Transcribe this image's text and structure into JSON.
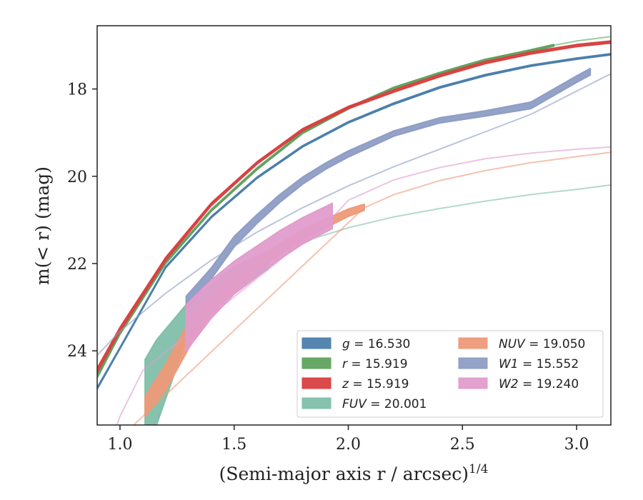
{
  "chart_data": {
    "type": "line",
    "xlabel": "(Semi-major axis r / arcsec)",
    "xlabel_sup": "1/4",
    "ylabel": "m(< r) (mag)",
    "xlim": [
      0.9,
      3.15
    ],
    "ylim": [
      25.7,
      16.55
    ],
    "y_inverted": true,
    "xticks": [
      1.0,
      1.5,
      2.0,
      2.5,
      3.0
    ],
    "xtick_labels": [
      "1.0",
      "1.5",
      "2.0",
      "2.5",
      "3.0"
    ],
    "yticks": [
      18,
      20,
      22,
      24
    ],
    "ytick_labels": [
      "18",
      "20",
      "22",
      "24"
    ],
    "grid": false,
    "legend_placement": "lower-right",
    "legend_columns": 2,
    "series": [
      {
        "name": "g = 16.530",
        "color": "#4c7fac",
        "legend_italic": "g",
        "legend_value": "= 16.530",
        "band": [
          [
            0.9,
            24.88,
            24.84
          ],
          [
            1.0,
            23.95,
            23.92
          ],
          [
            1.2,
            22.1,
            22.07
          ],
          [
            1.4,
            20.95,
            20.92
          ],
          [
            1.6,
            20.05,
            20.02
          ],
          [
            1.8,
            19.33,
            19.3
          ],
          [
            2.0,
            18.78,
            18.75
          ],
          [
            2.2,
            18.35,
            18.32
          ],
          [
            2.4,
            17.98,
            17.95
          ],
          [
            2.6,
            17.7,
            17.67
          ],
          [
            2.8,
            17.48,
            17.45
          ],
          [
            3.0,
            17.32,
            17.29
          ],
          [
            3.15,
            17.22,
            17.19
          ]
        ],
        "model": []
      },
      {
        "name": "r = 15.919",
        "color": "#5fa35f",
        "legend_italic": "r",
        "legend_value": "= 15.919",
        "band": [
          [
            0.9,
            24.62,
            24.55
          ],
          [
            1.0,
            23.62,
            23.56
          ],
          [
            1.2,
            22.0,
            21.96
          ],
          [
            1.4,
            20.8,
            20.76
          ],
          [
            1.6,
            19.85,
            19.81
          ],
          [
            1.8,
            19.02,
            18.98
          ],
          [
            2.0,
            18.46,
            18.42
          ],
          [
            2.2,
            18.0,
            17.96
          ],
          [
            2.4,
            17.66,
            17.62
          ],
          [
            2.6,
            17.36,
            17.32
          ],
          [
            2.8,
            17.14,
            17.1
          ],
          [
            2.9,
            17.02,
            16.98
          ]
        ],
        "model": [
          [
            2.9,
            17.0
          ],
          [
            3.0,
            16.9
          ],
          [
            3.15,
            16.8
          ]
        ]
      },
      {
        "name": "z = 15.919",
        "color": "#d94040",
        "legend_italic": "z",
        "legend_value": "= 15.919",
        "band": [
          [
            0.9,
            24.5,
            24.4
          ],
          [
            1.0,
            23.55,
            23.46
          ],
          [
            1.2,
            21.93,
            21.86
          ],
          [
            1.4,
            20.67,
            20.61
          ],
          [
            1.6,
            19.72,
            19.67
          ],
          [
            1.8,
            18.96,
            18.91
          ],
          [
            2.0,
            18.45,
            18.4
          ],
          [
            2.2,
            18.07,
            18.02
          ],
          [
            2.4,
            17.72,
            17.67
          ],
          [
            2.6,
            17.42,
            17.37
          ],
          [
            2.8,
            17.2,
            17.15
          ],
          [
            3.0,
            17.03,
            16.98
          ],
          [
            3.15,
            16.95,
            16.9
          ]
        ],
        "model": []
      },
      {
        "name": "FUV = 20.001",
        "color": "#80bfaa",
        "legend_italic": "FUV",
        "legend_value": "= 20.001",
        "band": [
          [
            1.11,
            25.7,
            24.2
          ],
          [
            1.16,
            25.7,
            23.75
          ],
          [
            1.3,
            23.6,
            22.88
          ],
          [
            1.5,
            22.62,
            22.08
          ],
          [
            1.65,
            22.12,
            21.72
          ]
        ],
        "model": [
          [
            1.65,
            21.8
          ],
          [
            1.8,
            21.5
          ],
          [
            2.0,
            21.18
          ],
          [
            2.2,
            20.93
          ],
          [
            2.4,
            20.74
          ],
          [
            2.6,
            20.57
          ],
          [
            2.8,
            20.42
          ],
          [
            3.0,
            20.3
          ],
          [
            3.15,
            20.2
          ]
        ]
      },
      {
        "name": "NUV = 19.050",
        "color": "#ee9a78",
        "legend_italic": "NUV",
        "legend_value": "= 19.050",
        "band": [
          [
            1.11,
            25.5,
            25.05
          ],
          [
            1.2,
            24.9,
            24.3
          ],
          [
            1.3,
            23.95,
            23.35
          ],
          [
            1.4,
            23.15,
            22.72
          ],
          [
            1.5,
            22.62,
            22.28
          ],
          [
            1.6,
            22.15,
            21.88
          ],
          [
            1.8,
            21.45,
            21.22
          ],
          [
            2.0,
            20.92,
            20.75
          ],
          [
            2.07,
            20.78,
            20.64
          ]
        ],
        "model": [
          [
            0.9,
            26.5
          ],
          [
            1.0,
            26.2
          ],
          [
            1.05,
            25.75
          ],
          [
            2.07,
            20.72
          ],
          [
            2.2,
            20.42
          ],
          [
            2.4,
            20.1
          ],
          [
            2.6,
            19.87
          ],
          [
            2.8,
            19.69
          ],
          [
            3.0,
            19.55
          ],
          [
            3.15,
            19.45
          ]
        ]
      },
      {
        "name": "W1 = 15.552",
        "color": "#8e9dc5",
        "legend_italic": "W1",
        "legend_value": "= 15.552",
        "band": [
          [
            1.29,
            23.05,
            22.75
          ],
          [
            1.4,
            22.35,
            22.1
          ],
          [
            1.5,
            21.62,
            21.38
          ],
          [
            1.6,
            21.08,
            20.88
          ],
          [
            1.7,
            20.6,
            20.42
          ],
          [
            1.8,
            20.18,
            20.02
          ],
          [
            1.9,
            19.84,
            19.7
          ],
          [
            2.0,
            19.56,
            19.42
          ],
          [
            2.2,
            19.08,
            18.96
          ],
          [
            2.4,
            18.78,
            18.66
          ],
          [
            2.6,
            18.62,
            18.5
          ],
          [
            2.8,
            18.45,
            18.3
          ],
          [
            2.9,
            18.15,
            18.0
          ],
          [
            3.0,
            17.85,
            17.7
          ],
          [
            3.06,
            17.68,
            17.53
          ]
        ],
        "model": [
          [
            0.9,
            24.1
          ],
          [
            1.0,
            23.55
          ],
          [
            1.2,
            22.68
          ],
          [
            1.4,
            21.92
          ],
          [
            1.6,
            21.28
          ],
          [
            1.8,
            20.72
          ],
          [
            2.0,
            20.22
          ],
          [
            2.2,
            19.78
          ],
          [
            2.4,
            19.38
          ],
          [
            2.6,
            18.98
          ],
          [
            2.8,
            18.58
          ],
          [
            3.0,
            18.05
          ],
          [
            3.15,
            17.65
          ]
        ]
      },
      {
        "name": "W2 = 19.240",
        "color": "#e09ccb",
        "legend_italic": "W2",
        "legend_value": "= 19.240",
        "band": [
          [
            1.29,
            24.0,
            22.95
          ],
          [
            1.4,
            23.25,
            22.38
          ],
          [
            1.5,
            22.7,
            21.95
          ],
          [
            1.6,
            22.3,
            21.6
          ],
          [
            1.7,
            21.9,
            21.25
          ],
          [
            1.8,
            21.55,
            20.95
          ],
          [
            1.93,
            21.2,
            20.62
          ]
        ],
        "model": [
          [
            0.9,
            27.0
          ],
          [
            1.0,
            25.5
          ],
          [
            1.1,
            24.45
          ],
          [
            1.93,
            20.95
          ],
          [
            2.0,
            20.55
          ],
          [
            2.2,
            20.08
          ],
          [
            2.4,
            19.8
          ],
          [
            2.6,
            19.6
          ],
          [
            2.8,
            19.47
          ],
          [
            3.0,
            19.38
          ],
          [
            3.15,
            19.33
          ]
        ]
      }
    ]
  }
}
